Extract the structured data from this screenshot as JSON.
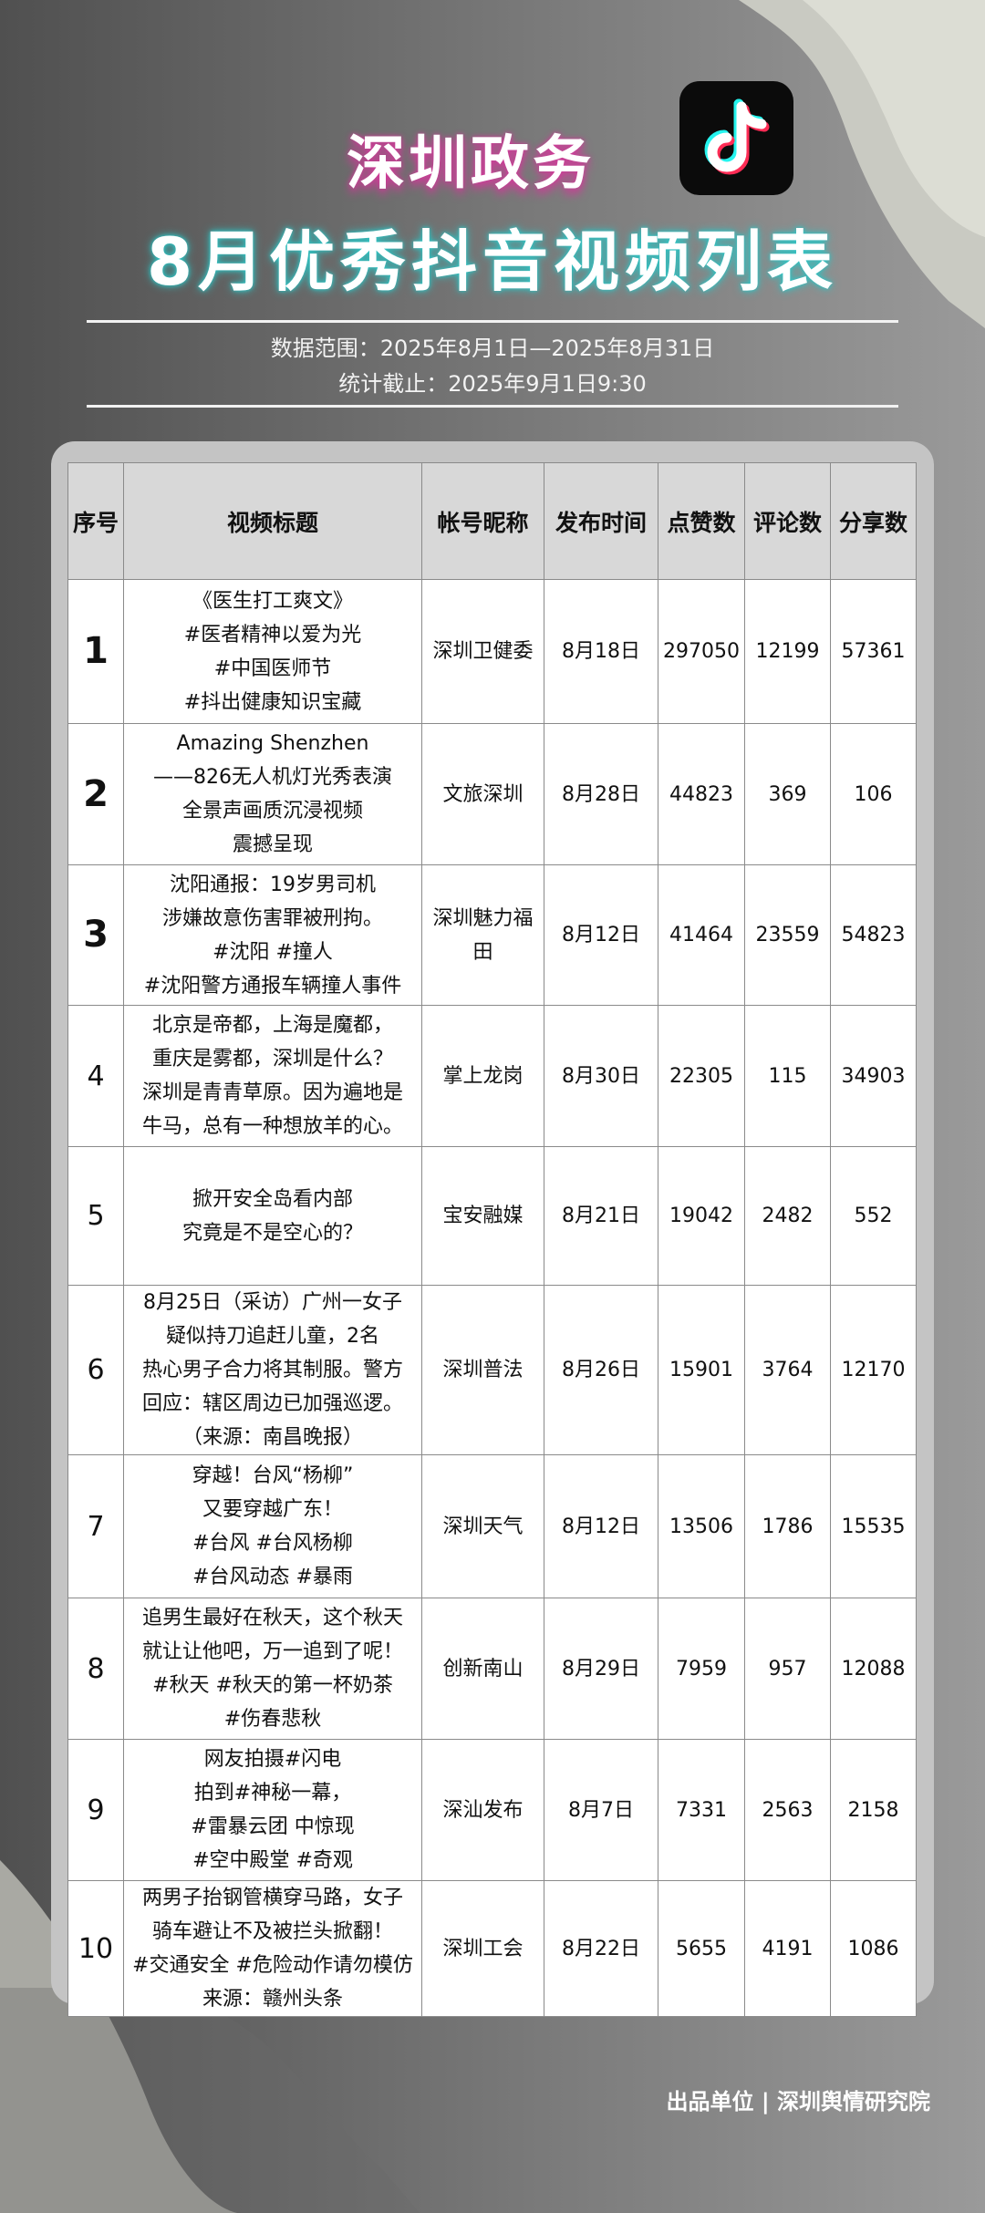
{
  "header": {
    "title_line1": "深圳政务",
    "title_line2": "8月优秀抖音视频列表",
    "logo_icon": "tiktok-logo-icon",
    "data_range": "数据范围：2025年8月1日—2025年8月31日",
    "cutoff": "统计截止：2025年9月1日9:30"
  },
  "table": {
    "columns": [
      "序号",
      "视频标题",
      "帐号昵称",
      "发布时间",
      "点赞数",
      "评论数",
      "分享数"
    ],
    "rows": [
      {
        "rank": "1",
        "title": [
          "《医生打工爽文》",
          "#医者精神以爱为光",
          "#中国医师节",
          "#抖出健康知识宝藏"
        ],
        "account": "深圳卫健委",
        "date": "8月18日",
        "likes": "297050",
        "comments": "12199",
        "shares": "57361"
      },
      {
        "rank": "2",
        "title": [
          "Amazing Shenzhen",
          "——826无人机灯光秀表演",
          "全景声画质沉浸视频",
          "震撼呈现"
        ],
        "account": "文旅深圳",
        "date": "8月28日",
        "likes": "44823",
        "comments": "369",
        "shares": "106"
      },
      {
        "rank": "3",
        "title": [
          "沈阳通报：19岁男司机",
          "涉嫌故意伤害罪被刑拘。",
          "#沈阳 #撞人",
          "#沈阳警方通报车辆撞人事件"
        ],
        "account": "深圳魅力福田",
        "date": "8月12日",
        "likes": "41464",
        "comments": "23559",
        "shares": "54823"
      },
      {
        "rank": "4",
        "title": [
          "北京是帝都，上海是魔都，",
          "重庆是雾都，深圳是什么？",
          "深圳是青青草原。因为遍地是",
          "牛马，总有一种想放羊的心。"
        ],
        "account": "掌上龙岗",
        "date": "8月30日",
        "likes": "22305",
        "comments": "115",
        "shares": "34903"
      },
      {
        "rank": "5",
        "title": [
          "掀开安全岛看内部",
          "究竟是不是空心的？"
        ],
        "account": "宝安融媒",
        "date": "8月21日",
        "likes": "19042",
        "comments": "2482",
        "shares": "552"
      },
      {
        "rank": "6",
        "title": [
          "8月25日（采访）广州一女子",
          "疑似持刀追赶儿童，2名",
          "热心男子合力将其制服。警方",
          "回应：辖区周边已加强巡逻。",
          "（来源：南昌晚报）"
        ],
        "account": "深圳普法",
        "date": "8月26日",
        "likes": "15901",
        "comments": "3764",
        "shares": "12170"
      },
      {
        "rank": "7",
        "title": [
          "穿越！台风“杨柳”",
          "又要穿越广东！",
          "#台风 #台风杨柳",
          "#台风动态 #暴雨"
        ],
        "account": "深圳天气",
        "date": "8月12日",
        "likes": "13506",
        "comments": "1786",
        "shares": "15535"
      },
      {
        "rank": "8",
        "title": [
          "追男生最好在秋天，这个秋天",
          "就让让他吧，万一追到了呢！",
          "#秋天 #秋天的第一杯奶茶",
          "#伤春悲秋"
        ],
        "account": "创新南山",
        "date": "8月29日",
        "likes": "7959",
        "comments": "957",
        "shares": "12088"
      },
      {
        "rank": "9",
        "title": [
          "网友拍摄#闪电",
          "拍到#神秘一幕，",
          "#雷暴云团 中惊现",
          "#空中殿堂 #奇观"
        ],
        "account": "深汕发布",
        "date": "8月7日",
        "likes": "7331",
        "comments": "2563",
        "shares": "2158"
      },
      {
        "rank": "10",
        "title": [
          "两男子抬钢管横穿马路，女子",
          "骑车避让不及被拦头掀翻！",
          "#交通安全 #危险动作请勿模仿",
          "来源：赣州头条"
        ],
        "account": "深圳工会",
        "date": "8月22日",
        "likes": "5655",
        "comments": "4191",
        "shares": "1086"
      }
    ]
  },
  "footer": {
    "credit": "出品单位 | 深圳舆情研究院"
  },
  "colors": {
    "title1_glow": "#d23a9a",
    "title2_glow": "#2ec4c4",
    "header_bg": "#d8d8d8",
    "card_bg": "#c4c4c4"
  }
}
